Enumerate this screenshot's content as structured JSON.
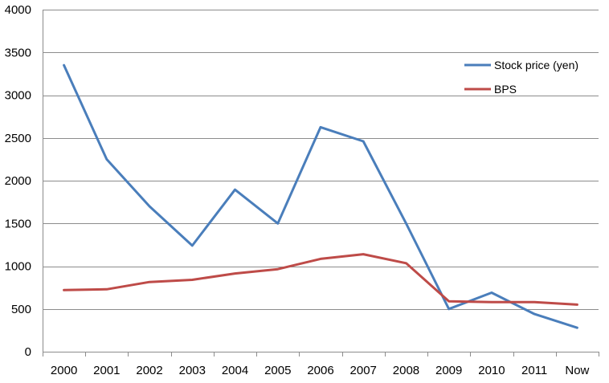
{
  "chart_data": {
    "type": "line",
    "categories": [
      "2000",
      "2001",
      "2002",
      "2003",
      "2004",
      "2005",
      "2006",
      "2007",
      "2008",
      "2009",
      "2010",
      "2011",
      "Now"
    ],
    "series": [
      {
        "name": "Stock price (yen)",
        "color": "#4a7ebb",
        "values": [
          3350,
          2250,
          1700,
          1240,
          1895,
          1500,
          2625,
          2460,
          1500,
          500,
          690,
          440,
          280
        ]
      },
      {
        "name": "BPS",
        "color": "#be4b48",
        "values": [
          720,
          730,
          815,
          840,
          915,
          965,
          1085,
          1140,
          1035,
          590,
          580,
          580,
          550
        ]
      }
    ],
    "title": "",
    "xlabel": "",
    "ylabel": "",
    "ylim": [
      0,
      4000
    ],
    "yticks": [
      0,
      500,
      1000,
      1500,
      2000,
      2500,
      3000,
      3500,
      4000
    ],
    "grid": true,
    "legend_position": "top-right"
  }
}
